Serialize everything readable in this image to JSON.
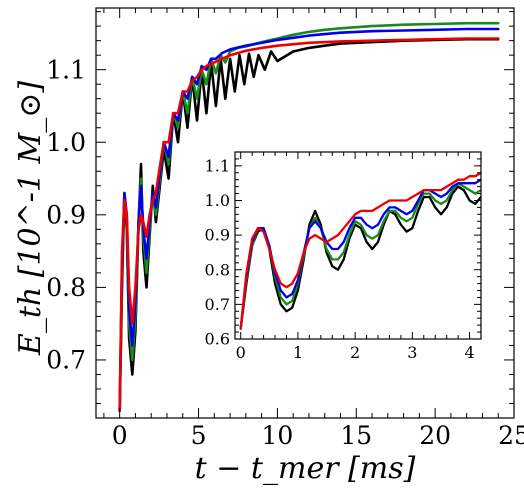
{
  "chart_data": [
    {
      "type": "line",
      "title": "",
      "xlabel": "t − t_mer [ms]",
      "ylabel": "E_th [10^-1 M_⊙]",
      "xlim": [
        -1.5,
        25
      ],
      "ylim": [
        0.62,
        1.185
      ],
      "xticks": [
        "0",
        "5",
        "10",
        "15",
        "20",
        "25"
      ],
      "yticks": [
        "0.7",
        "0.8",
        "0.9",
        "1.0",
        "1.1"
      ],
      "grid": false,
      "legend": "none",
      "series": [
        {
          "color": "#000000",
          "x": [
            0,
            0.15,
            0.3,
            0.45,
            0.6,
            0.8,
            1.0,
            1.2,
            1.35,
            1.5,
            1.7,
            1.9,
            2.1,
            2.3,
            2.5,
            2.8,
            3.1,
            3.4,
            3.7,
            4.0,
            4.3,
            4.6,
            4.9,
            5.2,
            5.5,
            5.8,
            6.1,
            6.4,
            6.7,
            7.0,
            7.3,
            7.6,
            7.9,
            8.2,
            8.5,
            8.8,
            9.2,
            9.6,
            10,
            11,
            12,
            13,
            14,
            16,
            18,
            20,
            22,
            24
          ],
          "y": [
            0.63,
            0.8,
            0.93,
            0.88,
            0.73,
            0.68,
            0.74,
            0.89,
            0.97,
            0.85,
            0.8,
            0.87,
            0.94,
            0.89,
            0.93,
            0.99,
            0.95,
            1.04,
            1.0,
            1.07,
            1.02,
            1.09,
            1.03,
            1.1,
            1.04,
            1.11,
            1.05,
            1.115,
            1.06,
            1.115,
            1.07,
            1.12,
            1.08,
            1.122,
            1.09,
            1.12,
            1.1,
            1.125,
            1.112,
            1.125,
            1.13,
            1.133,
            1.136,
            1.138,
            1.14,
            1.141,
            1.142,
            1.142
          ]
        },
        {
          "color": "#1a8a1a",
          "x": [
            0,
            0.15,
            0.3,
            0.45,
            0.6,
            0.8,
            1.0,
            1.2,
            1.35,
            1.5,
            1.7,
            1.9,
            2.1,
            2.3,
            2.5,
            2.8,
            3.1,
            3.4,
            3.7,
            4.0,
            4.3,
            4.6,
            4.9,
            5.2,
            5.5,
            5.8,
            6.1,
            6.4,
            6.7,
            7.0,
            7.5,
            8,
            9,
            10,
            11,
            12,
            13,
            14,
            16,
            18,
            20,
            22,
            24
          ],
          "y": [
            0.63,
            0.82,
            0.93,
            0.89,
            0.75,
            0.7,
            0.76,
            0.89,
            0.95,
            0.87,
            0.82,
            0.88,
            0.93,
            0.9,
            0.94,
            1.0,
            0.97,
            1.04,
            1.02,
            1.07,
            1.04,
            1.09,
            1.06,
            1.1,
            1.08,
            1.115,
            1.095,
            1.12,
            1.11,
            1.125,
            1.13,
            1.132,
            1.138,
            1.143,
            1.148,
            1.152,
            1.155,
            1.157,
            1.16,
            1.162,
            1.163,
            1.164,
            1.164
          ]
        },
        {
          "color": "#0000ee",
          "x": [
            0,
            0.15,
            0.3,
            0.45,
            0.6,
            0.8,
            1.0,
            1.2,
            1.35,
            1.5,
            1.7,
            1.9,
            2.1,
            2.3,
            2.5,
            2.8,
            3.1,
            3.4,
            3.7,
            4.0,
            4.3,
            4.6,
            4.9,
            5.2,
            5.5,
            5.8,
            6.1,
            6.5,
            7,
            8,
            9,
            10,
            11,
            12,
            13,
            14,
            16,
            18,
            20,
            22,
            24
          ],
          "y": [
            0.63,
            0.83,
            0.93,
            0.9,
            0.77,
            0.72,
            0.78,
            0.89,
            0.94,
            0.88,
            0.84,
            0.89,
            0.93,
            0.91,
            0.95,
            1.0,
            0.98,
            1.04,
            1.03,
            1.07,
            1.06,
            1.09,
            1.08,
            1.105,
            1.1,
            1.115,
            1.115,
            1.123,
            1.128,
            1.133,
            1.137,
            1.141,
            1.144,
            1.147,
            1.149,
            1.151,
            1.153,
            1.154,
            1.155,
            1.156,
            1.156
          ]
        },
        {
          "color": "#ee0000",
          "x": [
            0,
            0.15,
            0.3,
            0.45,
            0.6,
            0.8,
            1.0,
            1.2,
            1.35,
            1.5,
            1.7,
            1.9,
            2.1,
            2.3,
            2.5,
            2.8,
            3.1,
            3.4,
            3.7,
            4.0,
            4.3,
            4.6,
            4.9,
            5.2,
            5.5,
            6,
            6.5,
            7,
            8,
            9,
            10,
            12,
            14,
            16,
            18,
            20,
            22,
            24
          ],
          "y": [
            0.63,
            0.85,
            0.92,
            0.9,
            0.8,
            0.75,
            0.8,
            0.88,
            0.9,
            0.89,
            0.87,
            0.9,
            0.92,
            0.93,
            0.96,
            1.0,
            1.0,
            1.04,
            1.04,
            1.07,
            1.07,
            1.085,
            1.09,
            1.1,
            1.105,
            1.11,
            1.115,
            1.12,
            1.126,
            1.13,
            1.133,
            1.137,
            1.139,
            1.14,
            1.141,
            1.142,
            1.143,
            1.143
          ]
        }
      ]
    },
    {
      "type": "line",
      "title": "",
      "xlabel": "",
      "ylabel": "",
      "xlim": [
        -0.1,
        4.2
      ],
      "ylim": [
        0.6,
        1.14
      ],
      "xticks": [
        "0",
        "1",
        "2",
        "3",
        "4"
      ],
      "yticks": [
        "0.6",
        "0.7",
        "0.8",
        "0.9",
        "1.0",
        "1.1"
      ],
      "grid": false,
      "legend": "none",
      "series": [
        {
          "color": "#000000",
          "x": [
            0,
            0.1,
            0.2,
            0.3,
            0.4,
            0.5,
            0.6,
            0.7,
            0.8,
            0.9,
            1.0,
            1.1,
            1.2,
            1.3,
            1.4,
            1.5,
            1.6,
            1.7,
            1.8,
            1.9,
            2.0,
            2.1,
            2.2,
            2.3,
            2.4,
            2.5,
            2.6,
            2.7,
            2.8,
            2.9,
            3.0,
            3.1,
            3.2,
            3.3,
            3.4,
            3.5,
            3.6,
            3.7,
            3.8,
            3.9,
            4.0,
            4.1,
            4.2
          ],
          "y": [
            0.63,
            0.76,
            0.87,
            0.91,
            0.92,
            0.86,
            0.76,
            0.7,
            0.68,
            0.69,
            0.74,
            0.83,
            0.93,
            0.97,
            0.93,
            0.85,
            0.81,
            0.8,
            0.83,
            0.89,
            0.93,
            0.92,
            0.88,
            0.86,
            0.88,
            0.93,
            0.97,
            0.96,
            0.93,
            0.91,
            0.92,
            0.97,
            1.01,
            1.01,
            0.98,
            0.96,
            0.98,
            1.02,
            1.04,
            1.03,
            1.0,
            0.99,
            1.01
          ]
        },
        {
          "color": "#1a8a1a",
          "x": [
            0,
            0.1,
            0.2,
            0.3,
            0.4,
            0.5,
            0.6,
            0.7,
            0.8,
            0.9,
            1.0,
            1.1,
            1.2,
            1.3,
            1.4,
            1.5,
            1.6,
            1.7,
            1.8,
            1.9,
            2.0,
            2.1,
            2.2,
            2.3,
            2.4,
            2.5,
            2.6,
            2.7,
            2.8,
            2.9,
            3.0,
            3.1,
            3.2,
            3.3,
            3.4,
            3.5,
            3.6,
            3.7,
            3.8,
            3.9,
            4.0,
            4.1,
            4.2
          ],
          "y": [
            0.63,
            0.77,
            0.87,
            0.92,
            0.92,
            0.87,
            0.78,
            0.72,
            0.7,
            0.71,
            0.76,
            0.84,
            0.92,
            0.95,
            0.92,
            0.86,
            0.83,
            0.83,
            0.85,
            0.9,
            0.94,
            0.93,
            0.9,
            0.89,
            0.9,
            0.94,
            0.97,
            0.97,
            0.95,
            0.94,
            0.95,
            0.99,
            1.02,
            1.02,
            1.0,
            0.99,
            1.0,
            1.03,
            1.05,
            1.04,
            1.03,
            1.02,
            1.03
          ]
        },
        {
          "color": "#0000ee",
          "x": [
            0,
            0.1,
            0.2,
            0.3,
            0.4,
            0.5,
            0.6,
            0.7,
            0.8,
            0.9,
            1.0,
            1.1,
            1.2,
            1.3,
            1.4,
            1.5,
            1.6,
            1.7,
            1.8,
            1.9,
            2.0,
            2.1,
            2.2,
            2.3,
            2.4,
            2.5,
            2.6,
            2.7,
            2.8,
            2.9,
            3.0,
            3.1,
            3.2,
            3.3,
            3.4,
            3.5,
            3.6,
            3.7,
            3.8,
            3.9,
            4.0,
            4.1,
            4.2
          ],
          "y": [
            0.63,
            0.78,
            0.88,
            0.92,
            0.92,
            0.87,
            0.79,
            0.74,
            0.72,
            0.73,
            0.77,
            0.85,
            0.92,
            0.94,
            0.92,
            0.88,
            0.86,
            0.86,
            0.88,
            0.92,
            0.95,
            0.95,
            0.93,
            0.92,
            0.93,
            0.96,
            0.98,
            0.98,
            0.97,
            0.96,
            0.97,
            1.0,
            1.03,
            1.03,
            1.02,
            1.01,
            1.02,
            1.04,
            1.05,
            1.05,
            1.05,
            1.05,
            1.06
          ]
        },
        {
          "color": "#ee0000",
          "x": [
            0,
            0.1,
            0.2,
            0.3,
            0.4,
            0.5,
            0.6,
            0.7,
            0.8,
            0.9,
            1.0,
            1.1,
            1.2,
            1.3,
            1.4,
            1.5,
            1.6,
            1.7,
            1.8,
            1.9,
            2.0,
            2.1,
            2.2,
            2.3,
            2.4,
            2.5,
            2.6,
            2.7,
            2.8,
            2.9,
            3.0,
            3.1,
            3.2,
            3.3,
            3.4,
            3.5,
            3.6,
            3.7,
            3.8,
            3.9,
            4.0,
            4.1,
            4.2
          ],
          "y": [
            0.63,
            0.79,
            0.89,
            0.92,
            0.91,
            0.86,
            0.8,
            0.76,
            0.75,
            0.76,
            0.79,
            0.85,
            0.89,
            0.9,
            0.89,
            0.88,
            0.89,
            0.9,
            0.92,
            0.94,
            0.96,
            0.97,
            0.97,
            0.97,
            0.98,
            0.99,
            1.0,
            1.0,
            1.0,
            1.0,
            1.01,
            1.02,
            1.03,
            1.03,
            1.03,
            1.03,
            1.04,
            1.05,
            1.06,
            1.06,
            1.07,
            1.07,
            1.08
          ]
        }
      ]
    }
  ]
}
